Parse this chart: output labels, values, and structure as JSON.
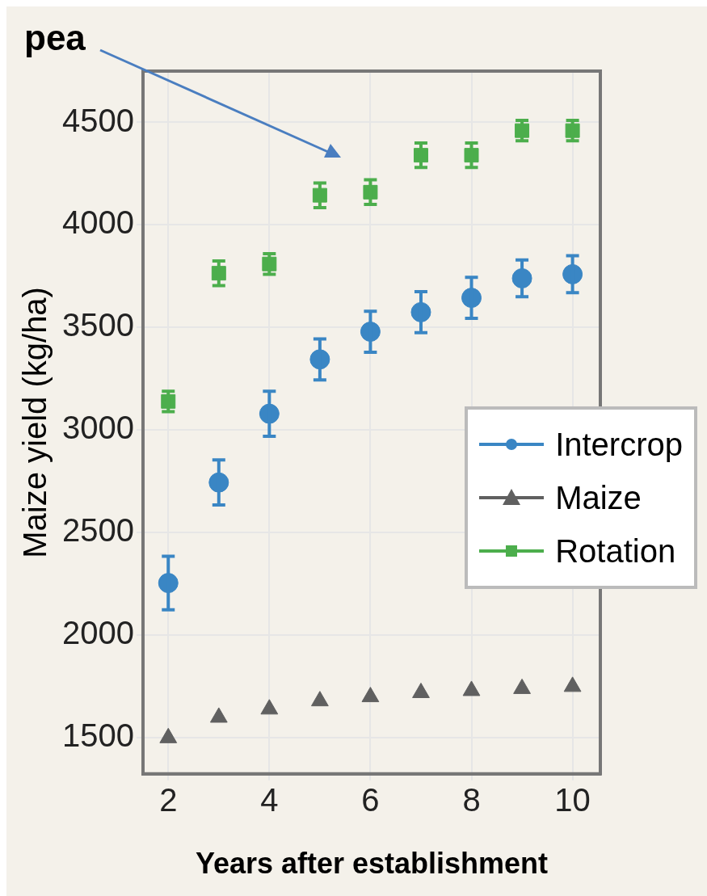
{
  "chart_data": {
    "type": "scatter",
    "xlabel": "Years after establishment",
    "ylabel": "Maize yield (kg/ha)",
    "annotations": [
      "pea"
    ],
    "xlim": [
      1.5,
      10.55
    ],
    "ylim": [
      1325,
      4750
    ],
    "xticks": [
      2,
      4,
      6,
      8,
      10
    ],
    "yticks": [
      1500,
      2000,
      2500,
      3000,
      3500,
      4000,
      4500
    ],
    "grid": true,
    "legend": "right",
    "series": [
      {
        "name": "Intercrop",
        "color": "#3a86c4",
        "marker": "circle",
        "x": [
          2,
          3,
          4,
          5,
          6,
          7,
          8,
          9,
          10
        ],
        "values": [
          2255,
          2745,
          3080,
          3345,
          3480,
          3575,
          3645,
          3740,
          3760
        ],
        "errors": [
          130,
          110,
          110,
          100,
          100,
          100,
          100,
          90,
          90
        ]
      },
      {
        "name": "Maize",
        "color": "#606060",
        "marker": "triangle",
        "x": [
          2,
          3,
          4,
          5,
          6,
          7,
          8,
          9,
          10
        ],
        "values": [
          1500,
          1600,
          1640,
          1680,
          1700,
          1720,
          1730,
          1740,
          1750
        ]
      },
      {
        "name": "Rotation",
        "color": "#4cae4c",
        "marker": "square",
        "x": [
          2,
          3,
          4,
          5,
          6,
          7,
          8,
          9,
          10
        ],
        "values": [
          3140,
          3765,
          3810,
          4145,
          4160,
          4340,
          4340,
          4460,
          4460
        ],
        "errors": [
          50,
          60,
          50,
          60,
          60,
          60,
          60,
          50,
          50
        ]
      }
    ]
  }
}
